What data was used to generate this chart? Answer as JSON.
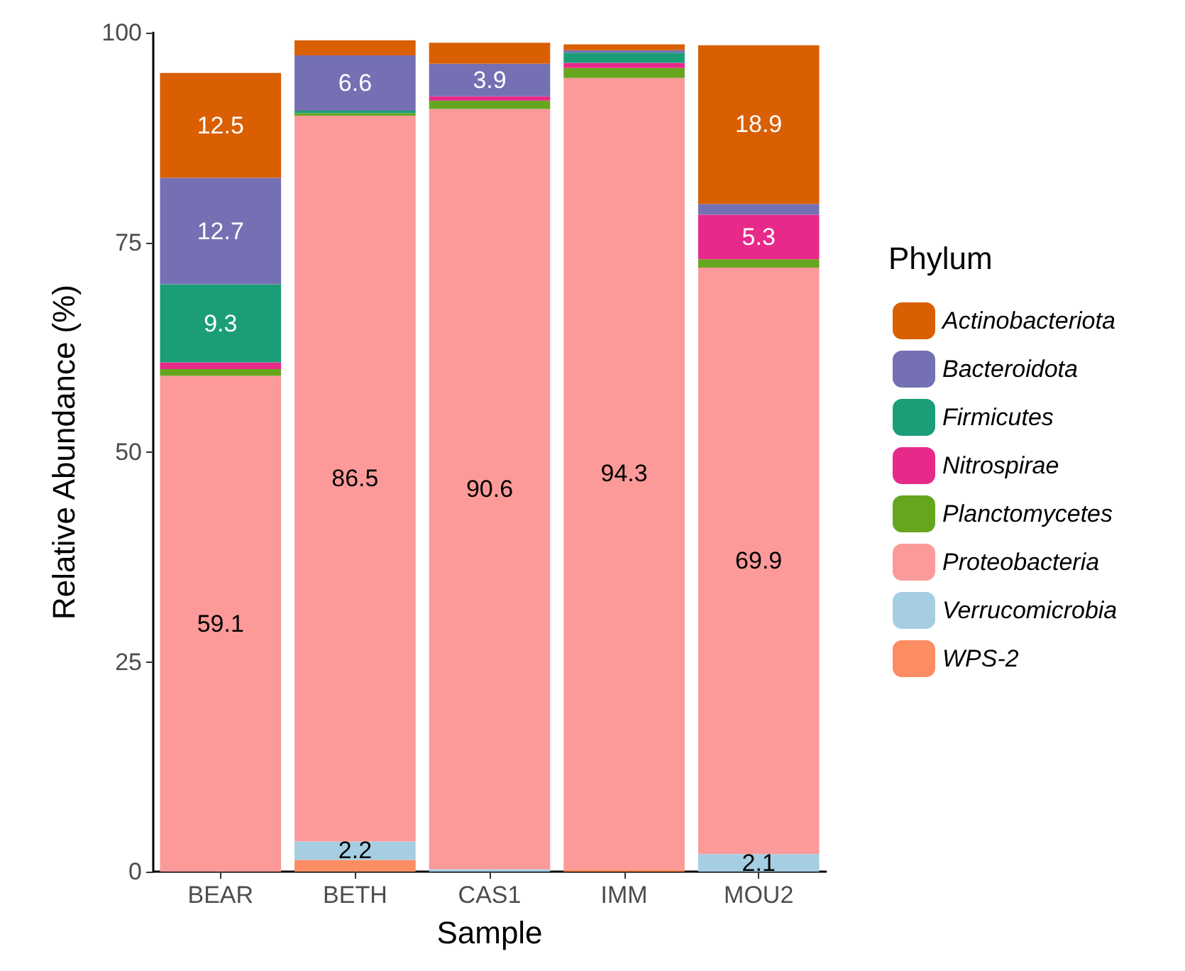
{
  "chart_data": {
    "type": "bar",
    "stacked": true,
    "xlabel": "Sample",
    "ylabel": "Relative Abundance (%)",
    "legend_title": "Phylum",
    "legend": "right",
    "grid": false,
    "ylim": [
      0,
      100
    ],
    "yticks": [
      0,
      25,
      50,
      75,
      100
    ],
    "categories": [
      "BEAR",
      "BETH",
      "CAS1",
      "IMM",
      "MOU2"
    ],
    "series": [
      {
        "name": "WPS-2",
        "color": "#fc8d62",
        "values": [
          0,
          1.4,
          0,
          0.3,
          0
        ],
        "value_labels": [
          null,
          null,
          null,
          null,
          null
        ]
      },
      {
        "name": "Verrucomicrobia",
        "color": "#a6cee3",
        "values": [
          null,
          2.2,
          0.3,
          0,
          2.1
        ],
        "value_labels": [
          null,
          "2.2",
          null,
          null,
          "2.1"
        ]
      },
      {
        "name": "Proteobacteria",
        "color": "#fb9a99",
        "values": [
          59.1,
          86.5,
          90.6,
          94.3,
          69.9
        ],
        "value_labels": [
          "59.1",
          "86.5",
          "90.6",
          "94.3",
          "69.9"
        ]
      },
      {
        "name": "Planctomycetes",
        "color": "#66a61e",
        "values": [
          0.8,
          0.3,
          1,
          1.2,
          1
        ],
        "value_labels": [
          null,
          null,
          null,
          null,
          null
        ]
      },
      {
        "name": "Nitrospirae",
        "color": "#e7298a",
        "values": [
          0.8,
          0,
          0.5,
          0.6,
          5.3
        ],
        "value_labels": [
          null,
          null,
          null,
          null,
          "5.3"
        ]
      },
      {
        "name": "Firmicutes",
        "color": "#1b9e77",
        "values": [
          9.3,
          0.3,
          0,
          1.2,
          0
        ],
        "value_labels": [
          "9.3",
          null,
          null,
          null,
          null
        ]
      },
      {
        "name": "Bacteroidota",
        "color": "#7570b3",
        "values": [
          12.7,
          6.6,
          3.9,
          0.3,
          1.3
        ],
        "value_labels": [
          "12.7",
          "6.6",
          "3.9",
          null,
          null
        ]
      },
      {
        "name": "Actinobacteriota",
        "color": "#d95f02",
        "values": [
          12.5,
          1.8,
          2.5,
          0.7,
          18.9
        ],
        "value_labels": [
          "12.5",
          null,
          null,
          null,
          "18.9"
        ]
      }
    ]
  }
}
